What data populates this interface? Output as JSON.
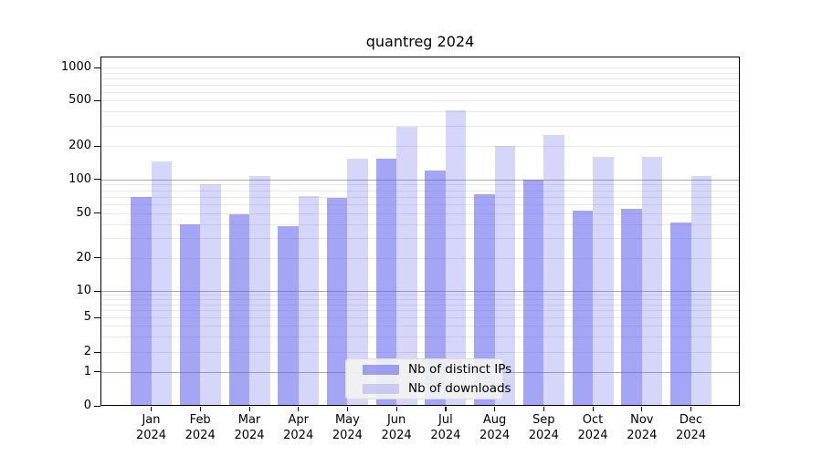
{
  "title": "quantreg 2024",
  "chart_data": {
    "type": "bar",
    "title": "quantreg 2024",
    "categories": [
      "Jan",
      "Feb",
      "Mar",
      "Apr",
      "May",
      "Jun",
      "Jul",
      "Aug",
      "Sep",
      "Oct",
      "Nov",
      "Dec"
    ],
    "year": "2024",
    "series": [
      {
        "name": "Nb of distinct IPs",
        "values": [
          70,
          40,
          49,
          38,
          68,
          155,
          120,
          74,
          100,
          53,
          55,
          41
        ]
      },
      {
        "name": "Nb of downloads",
        "values": [
          145,
          90,
          108,
          71,
          155,
          295,
          410,
          200,
          250,
          160,
          160,
          108
        ]
      }
    ],
    "y_ticks": [
      0,
      1,
      2,
      5,
      10,
      20,
      50,
      100,
      200,
      500,
      1000
    ],
    "yscale": "log",
    "ylim": [
      0,
      1000
    ],
    "grid": "on",
    "legend_position": "lower center",
    "xlabel": "",
    "ylabel": ""
  },
  "colors": {
    "bar_base_hex": "#5b5bed",
    "ips_fill": "rgba(91,91,237,0.55)",
    "downloads_fill": "rgba(91,91,237,0.25)",
    "grid_major": "#ababab",
    "grid_minor": "#e8e8e8",
    "legend_bg": "#f2f2f2"
  }
}
